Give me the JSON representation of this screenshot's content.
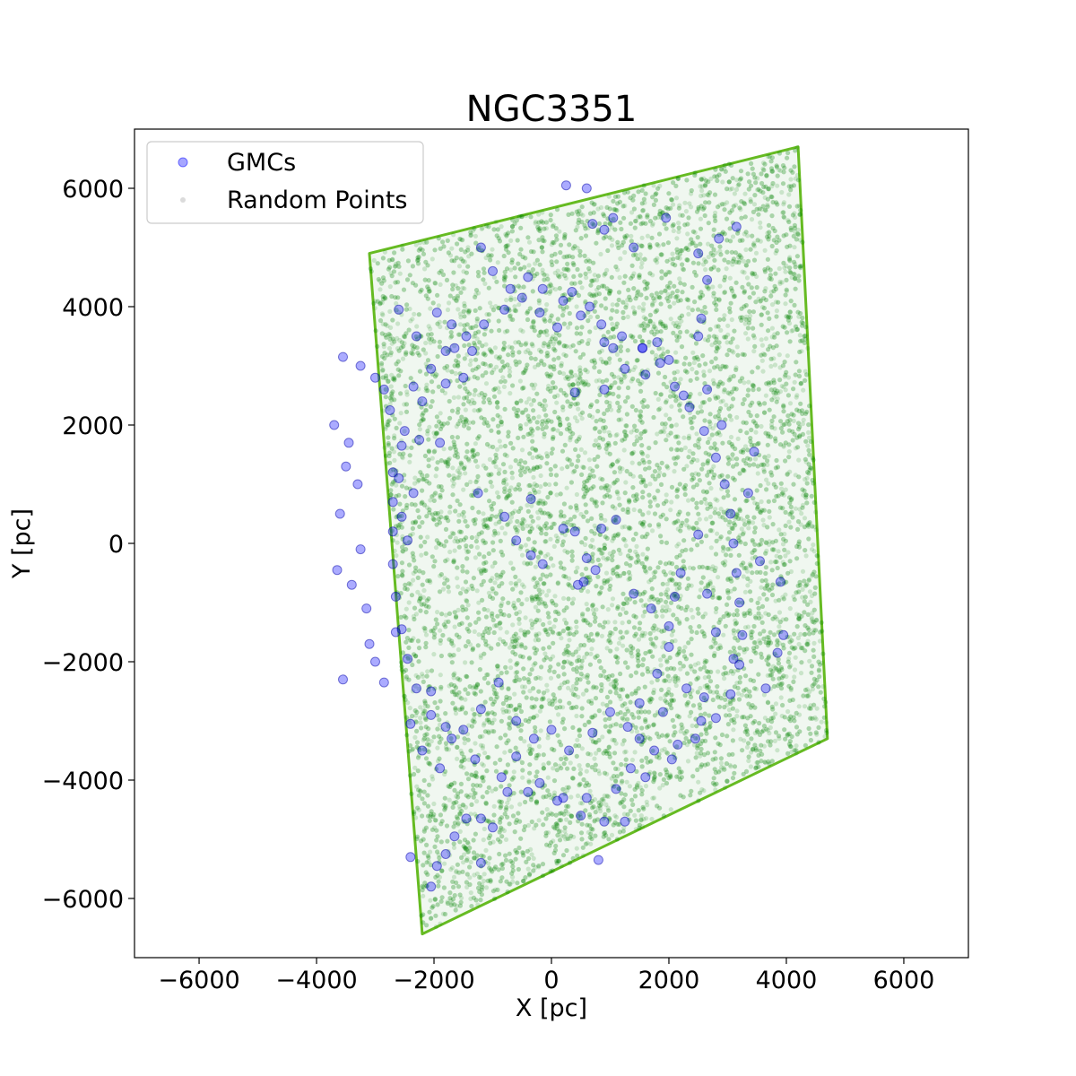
{
  "chart_data": {
    "type": "scatter",
    "title": "NGC3351",
    "xlabel": "X [pc]",
    "ylabel": "Y [pc]",
    "xlim": [
      -7100,
      7100
    ],
    "ylim": [
      -7000,
      7000
    ],
    "xticks": [
      -6000,
      -4000,
      -2000,
      0,
      2000,
      4000,
      6000
    ],
    "yticks": [
      -6000,
      -4000,
      -2000,
      0,
      2000,
      4000,
      6000
    ],
    "xtick_labels": [
      "−6000",
      "−4000",
      "−2000",
      "0",
      "2000",
      "4000",
      "6000"
    ],
    "ytick_labels": [
      "−6000",
      "−4000",
      "−2000",
      "0",
      "2000",
      "4000",
      "6000"
    ],
    "grid": false,
    "legend_position": "top-left",
    "footprint_corners": [
      [
        -3100,
        4900
      ],
      [
        4200,
        6700
      ],
      [
        4700,
        -3300
      ],
      [
        -2200,
        -6600
      ]
    ],
    "series": [
      {
        "name": "GMCs",
        "color": "#0000ff",
        "marker": "circle",
        "points": [
          [
            -2750,
            2250
          ],
          [
            -2550,
            1650
          ],
          [
            -2350,
            2650
          ],
          [
            -2050,
            2950
          ],
          [
            -1800,
            3250
          ],
          [
            -1450,
            3500
          ],
          [
            -1150,
            3700
          ],
          [
            -800,
            3950
          ],
          [
            -500,
            4150
          ],
          [
            -150,
            4300
          ],
          [
            200,
            4100
          ],
          [
            500,
            3850
          ],
          [
            850,
            3700
          ],
          [
            1200,
            3500
          ],
          [
            1550,
            3300
          ],
          [
            1850,
            3050
          ],
          [
            2100,
            2650
          ],
          [
            2350,
            2300
          ],
          [
            2600,
            1900
          ],
          [
            2800,
            1450
          ],
          [
            2950,
            1000
          ],
          [
            3050,
            500
          ],
          [
            3100,
            0
          ],
          [
            3150,
            -500
          ],
          [
            3200,
            -1000
          ],
          [
            3250,
            -1550
          ],
          [
            3200,
            -2050
          ],
          [
            3050,
            -2550
          ],
          [
            2800,
            -2950
          ],
          [
            2450,
            -3300
          ],
          [
            2050,
            -3650
          ],
          [
            1600,
            -3950
          ],
          [
            1100,
            -4150
          ],
          [
            600,
            -4300
          ],
          [
            100,
            -4350
          ],
          [
            -400,
            -4200
          ],
          [
            -850,
            -3950
          ],
          [
            -1300,
            -3650
          ],
          [
            -1700,
            -3300
          ],
          [
            -2050,
            -2900
          ],
          [
            -2300,
            -2450
          ],
          [
            -2450,
            -1950
          ],
          [
            -2550,
            -1450
          ],
          [
            -2650,
            -900
          ],
          [
            -2700,
            -350
          ],
          [
            -2700,
            200
          ],
          [
            -2700,
            700
          ],
          [
            -2700,
            1200
          ],
          [
            -3550,
            3150
          ],
          [
            -3250,
            3000
          ],
          [
            -3000,
            2800
          ],
          [
            -2850,
            2600
          ],
          [
            -3450,
            1700
          ],
          [
            -3300,
            1000
          ],
          [
            -3500,
            1300
          ],
          [
            -3600,
            500
          ],
          [
            -3250,
            -100
          ],
          [
            -3400,
            -700
          ],
          [
            -3150,
            -1100
          ],
          [
            -3100,
            -1700
          ],
          [
            -3000,
            -2000
          ],
          [
            -2850,
            -2350
          ],
          [
            -3550,
            -2300
          ],
          [
            -3650,
            -450
          ],
          [
            -3700,
            2000
          ],
          [
            -1200,
            5000
          ],
          [
            -1000,
            4600
          ],
          [
            -700,
            4300
          ],
          [
            -400,
            4500
          ],
          [
            -200,
            3900
          ],
          [
            100,
            3650
          ],
          [
            350,
            4250
          ],
          [
            650,
            4000
          ],
          [
            250,
            6050
          ],
          [
            600,
            6000
          ],
          [
            700,
            5400
          ],
          [
            900,
            5300
          ],
          [
            1050,
            5500
          ],
          [
            1400,
            5000
          ],
          [
            1950,
            5500
          ],
          [
            2500,
            4900
          ],
          [
            2650,
            4450
          ],
          [
            2850,
            5150
          ],
          [
            3150,
            5350
          ],
          [
            2550,
            3800
          ],
          [
            2500,
            3500
          ],
          [
            2250,
            2500
          ],
          [
            2650,
            2600
          ],
          [
            2900,
            2000
          ],
          [
            3450,
            1550
          ],
          [
            3350,
            850
          ],
          [
            3550,
            -300
          ],
          [
            3900,
            -650
          ],
          [
            3950,
            -1550
          ],
          [
            3850,
            -1850
          ],
          [
            3650,
            -2450
          ],
          [
            3100,
            -1950
          ],
          [
            2800,
            -1500
          ],
          [
            2650,
            -850
          ],
          [
            2500,
            150
          ],
          [
            2200,
            -500
          ],
          [
            2000,
            -1750
          ],
          [
            1800,
            -2200
          ],
          [
            1500,
            -2700
          ],
          [
            1300,
            -3100
          ],
          [
            1500,
            -3300
          ],
          [
            1900,
            -2850
          ],
          [
            2300,
            -2450
          ],
          [
            2600,
            -2600
          ],
          [
            2550,
            -3000
          ],
          [
            2150,
            -3400
          ],
          [
            1750,
            -3500
          ],
          [
            1350,
            -3800
          ],
          [
            900,
            -4700
          ],
          [
            1250,
            -4700
          ],
          [
            800,
            -5350
          ],
          [
            500,
            -4600
          ],
          [
            200,
            -4300
          ],
          [
            -200,
            -4050
          ],
          [
            -600,
            -3600
          ],
          [
            -750,
            -4200
          ],
          [
            -1200,
            -4650
          ],
          [
            -1450,
            -4650
          ],
          [
            -1800,
            -5250
          ],
          [
            -1650,
            -4950
          ],
          [
            -2050,
            -5800
          ],
          [
            -2400,
            -5300
          ],
          [
            -1950,
            -5450
          ],
          [
            -1200,
            -5400
          ],
          [
            -1000,
            -4800
          ],
          [
            -1900,
            -3800
          ],
          [
            -2200,
            -3500
          ],
          [
            -2400,
            -3050
          ],
          [
            -2050,
            -2500
          ],
          [
            -1800,
            -3100
          ],
          [
            -1500,
            -3150
          ],
          [
            -1200,
            -2800
          ],
          [
            -900,
            -2350
          ],
          [
            -600,
            -3000
          ],
          [
            -300,
            -3300
          ],
          [
            0,
            -3150
          ],
          [
            300,
            -3500
          ],
          [
            700,
            -3200
          ],
          [
            1000,
            -2850
          ],
          [
            -2600,
            3950
          ],
          [
            -2300,
            3500
          ],
          [
            -1950,
            3900
          ],
          [
            -1700,
            3700
          ],
          [
            -1650,
            3300
          ],
          [
            -1350,
            3250
          ],
          [
            -1500,
            2800
          ],
          [
            -1800,
            2700
          ],
          [
            -2200,
            2400
          ],
          [
            -2500,
            1900
          ],
          [
            -2250,
            1750
          ],
          [
            -1900,
            1700
          ],
          [
            -2600,
            1100
          ],
          [
            -2350,
            850
          ],
          [
            -2550,
            450
          ],
          [
            -2450,
            50
          ],
          [
            -2650,
            -1500
          ],
          [
            -1250,
            850
          ],
          [
            -350,
            750
          ],
          [
            -800,
            450
          ],
          [
            -600,
            50
          ],
          [
            -350,
            -200
          ],
          [
            -150,
            -350
          ],
          [
            200,
            250
          ],
          [
            400,
            200
          ],
          [
            600,
            -250
          ],
          [
            750,
            -450
          ],
          [
            550,
            -650
          ],
          [
            450,
            -700
          ],
          [
            850,
            250
          ],
          [
            1100,
            400
          ],
          [
            1400,
            -850
          ],
          [
            1700,
            -1100
          ],
          [
            2000,
            -1400
          ],
          [
            2100,
            -900
          ],
          [
            900,
            2600
          ],
          [
            400,
            2550
          ],
          [
            900,
            3400
          ],
          [
            1050,
            3300
          ],
          [
            1250,
            2950
          ],
          [
            1600,
            2850
          ],
          [
            1550,
            3300
          ],
          [
            1800,
            3400
          ],
          [
            2000,
            3100
          ]
        ]
      },
      {
        "name": "Random Points",
        "color": "#008000",
        "marker": "circle"
      }
    ]
  }
}
